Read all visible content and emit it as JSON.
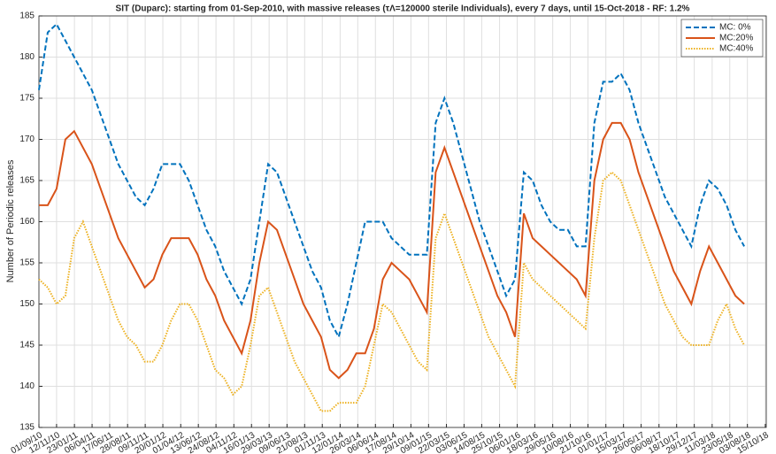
{
  "chart_data": {
    "type": "line",
    "title": "SIT (Duparc): starting from 01-Sep-2010, with massive releases (τΛ=120000 sterile Individuals), every 7 days,  until 15-Oct-2018 - RF: 1.2%",
    "y_label": "Number of Periodic releases",
    "x": [
      0,
      36,
      72,
      108,
      144,
      180,
      216,
      252,
      288,
      324,
      360,
      396,
      432,
      468,
      504,
      540,
      576,
      612,
      648,
      684,
      720,
      756,
      792,
      828,
      864,
      900,
      936,
      972,
      1008,
      1044,
      1080,
      1116,
      1152,
      1188,
      1224,
      1260,
      1296,
      1332,
      1368,
      1404,
      1440,
      1476,
      1512,
      1548,
      1584,
      1620,
      1656,
      1692,
      1728,
      1764,
      1800,
      1836,
      1872,
      1908,
      1944,
      1980,
      2016,
      2052,
      2088,
      2124,
      2160,
      2196,
      2232,
      2268,
      2304,
      2340,
      2376,
      2412,
      2448,
      2484,
      2520,
      2556,
      2592,
      2628,
      2664,
      2700,
      2736,
      2772,
      2808,
      2844,
      2880
    ],
    "series": [
      {
        "name": "MC: 0%",
        "color": "#0072bd",
        "dash": "dashed",
        "values": [
          176,
          183,
          184,
          182,
          180,
          178,
          176,
          173,
          170,
          167,
          165,
          163,
          162,
          164,
          167,
          167,
          167,
          165,
          162,
          159,
          157,
          154,
          152,
          150,
          153,
          160,
          167,
          166,
          163,
          160,
          157,
          154,
          152,
          148,
          146,
          150,
          155,
          160,
          160,
          160,
          158,
          157,
          156,
          156,
          156,
          172,
          175,
          172,
          168,
          164,
          160,
          157,
          154,
          151,
          153,
          166,
          165,
          162,
          160,
          159,
          159,
          157,
          157,
          172,
          177,
          177,
          178,
          176,
          172,
          169,
          166,
          163,
          161,
          159,
          157,
          162,
          165,
          164,
          162,
          159,
          157
        ]
      },
      {
        "name": "MC:20%",
        "color": "#d95319",
        "dash": "solid",
        "values": [
          162,
          162,
          164,
          170,
          171,
          169,
          167,
          164,
          161,
          158,
          156,
          154,
          152,
          153,
          156,
          158,
          158,
          158,
          156,
          153,
          151,
          148,
          146,
          144,
          148,
          155,
          160,
          159,
          156,
          153,
          150,
          148,
          146,
          142,
          141,
          142,
          144,
          144,
          147,
          153,
          155,
          154,
          153,
          151,
          149,
          166,
          169,
          166,
          163,
          160,
          157,
          154,
          151,
          149,
          146,
          161,
          158,
          157,
          156,
          155,
          154,
          153,
          151,
          165,
          170,
          172,
          172,
          170,
          166,
          163,
          160,
          157,
          154,
          152,
          150,
          154,
          157,
          155,
          153,
          151,
          150
        ]
      },
      {
        "name": "MC:40%",
        "color": "#edb120",
        "dash": "dotted",
        "values": [
          153,
          152,
          150,
          151,
          158,
          160,
          157,
          154,
          151,
          148,
          146,
          145,
          143,
          143,
          145,
          148,
          150,
          150,
          148,
          145,
          142,
          141,
          139,
          140,
          145,
          151,
          152,
          149,
          146,
          143,
          141,
          139,
          137,
          137,
          138,
          138,
          138,
          140,
          145,
          150,
          149,
          147,
          145,
          143,
          142,
          158,
          161,
          158,
          155,
          152,
          149,
          146,
          144,
          142,
          140,
          155,
          153,
          152,
          151,
          150,
          149,
          148,
          147,
          158,
          165,
          166,
          165,
          162,
          159,
          156,
          153,
          150,
          148,
          146,
          145,
          145,
          145,
          148,
          150,
          147,
          145
        ]
      }
    ],
    "xlim": [
      0,
      2970
    ],
    "xticks": [
      {
        "value": 0,
        "label": "01/09/10"
      },
      {
        "value": 72,
        "label": "12/11/10"
      },
      {
        "value": 145,
        "label": "23/01/11"
      },
      {
        "value": 217,
        "label": "06/04/11"
      },
      {
        "value": 289,
        "label": "17/06/11"
      },
      {
        "value": 362,
        "label": "28/08/11"
      },
      {
        "value": 434,
        "label": "09/11/11"
      },
      {
        "value": 506,
        "label": "20/01/12"
      },
      {
        "value": 579,
        "label": "01/04/12"
      },
      {
        "value": 651,
        "label": "13/06/12"
      },
      {
        "value": 723,
        "label": "24/08/12"
      },
      {
        "value": 796,
        "label": "04/11/12"
      },
      {
        "value": 868,
        "label": "16/01/13"
      },
      {
        "value": 940,
        "label": "29/03/13"
      },
      {
        "value": 1013,
        "label": "09/06/13"
      },
      {
        "value": 1085,
        "label": "21/08/13"
      },
      {
        "value": 1157,
        "label": "01/11/13"
      },
      {
        "value": 1230,
        "label": "12/01/14"
      },
      {
        "value": 1302,
        "label": "26/03/14"
      },
      {
        "value": 1374,
        "label": "06/06/14"
      },
      {
        "value": 1447,
        "label": "17/08/14"
      },
      {
        "value": 1519,
        "label": "29/10/14"
      },
      {
        "value": 1591,
        "label": "09/01/15"
      },
      {
        "value": 1664,
        "label": "22/03/15"
      },
      {
        "value": 1736,
        "label": "03/06/15"
      },
      {
        "value": 1808,
        "label": "14/08/15"
      },
      {
        "value": 1881,
        "label": "25/10/15"
      },
      {
        "value": 1953,
        "label": "06/01/16"
      },
      {
        "value": 2025,
        "label": "18/03/16"
      },
      {
        "value": 2098,
        "label": "29/05/16"
      },
      {
        "value": 2170,
        "label": "10/08/16"
      },
      {
        "value": 2242,
        "label": "21/10/16"
      },
      {
        "value": 2315,
        "label": "01/01/17"
      },
      {
        "value": 2387,
        "label": "15/03/17"
      },
      {
        "value": 2459,
        "label": "26/05/17"
      },
      {
        "value": 2532,
        "label": "06/08/17"
      },
      {
        "value": 2604,
        "label": "18/10/17"
      },
      {
        "value": 2676,
        "label": "29/12/17"
      },
      {
        "value": 2749,
        "label": "11/03/18"
      },
      {
        "value": 2821,
        "label": "23/05/18"
      },
      {
        "value": 2893,
        "label": "03/08/18"
      },
      {
        "value": 2966,
        "label": "15/10/18"
      }
    ],
    "ylim": [
      135,
      185
    ],
    "yticks": [
      135,
      140,
      145,
      150,
      155,
      160,
      165,
      170,
      175,
      180,
      185
    ],
    "grid": true,
    "legend": "top-right"
  }
}
